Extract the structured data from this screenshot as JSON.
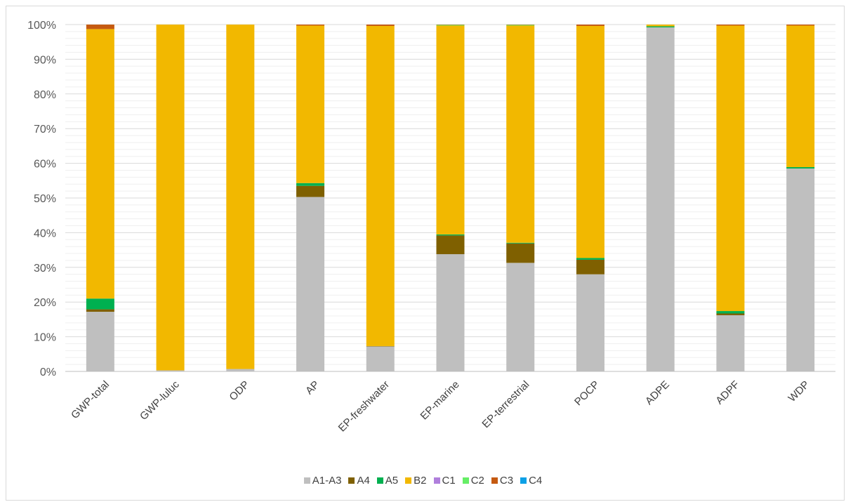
{
  "chart_data": {
    "type": "bar",
    "stacked": true,
    "percent_stacked": true,
    "title": "",
    "xlabel": "",
    "ylabel": "",
    "ylim": [
      0,
      100
    ],
    "yticks": [
      "0%",
      "10%",
      "20%",
      "30%",
      "40%",
      "50%",
      "60%",
      "70%",
      "80%",
      "90%",
      "100%"
    ],
    "grid": true,
    "legend_position": "bottom",
    "categories": [
      "GWP-total",
      "GWP-luluc",
      "ODP",
      "AP",
      "EP-freshwater",
      "EP-marine",
      "EP-terrestrial",
      "POCP",
      "ADPE",
      "ADPF",
      "WDP"
    ],
    "series": [
      {
        "name": "A1-A3",
        "color": "#bfbfbf",
        "values": [
          17.2,
          0.3,
          0.7,
          50.3,
          7.2,
          33.8,
          31.3,
          28.0,
          99.2,
          16.2,
          58.5
        ]
      },
      {
        "name": "A4",
        "color": "#7f6000",
        "values": [
          0.7,
          0.0,
          0.0,
          3.2,
          0.1,
          5.4,
          5.6,
          4.2,
          0.0,
          0.5,
          0.0
        ]
      },
      {
        "name": "A5",
        "color": "#00b050",
        "values": [
          3.1,
          0.0,
          0.0,
          0.8,
          0.0,
          0.3,
          0.2,
          0.5,
          0.3,
          0.7,
          0.4
        ]
      },
      {
        "name": "B2",
        "color": "#f2b800",
        "values": [
          77.7,
          99.7,
          99.3,
          45.4,
          92.3,
          60.2,
          62.6,
          66.9,
          0.5,
          82.3,
          40.8
        ]
      },
      {
        "name": "C1",
        "color": "#b07fdc",
        "values": [
          0,
          0,
          0,
          0,
          0,
          0,
          0,
          0,
          0,
          0,
          0
        ]
      },
      {
        "name": "C2",
        "color": "#66ee66",
        "values": [
          0,
          0,
          0,
          0,
          0,
          0.2,
          0.2,
          0,
          0,
          0,
          0
        ]
      },
      {
        "name": "C3",
        "color": "#c55a11",
        "values": [
          1.3,
          0.0,
          0.0,
          0.3,
          0.4,
          0.1,
          0.1,
          0.4,
          0.0,
          0.3,
          0.3
        ]
      },
      {
        "name": "C4",
        "color": "#0ba0e6",
        "values": [
          0,
          0,
          0,
          0,
          0,
          0,
          0,
          0,
          0,
          0,
          0
        ]
      }
    ]
  }
}
